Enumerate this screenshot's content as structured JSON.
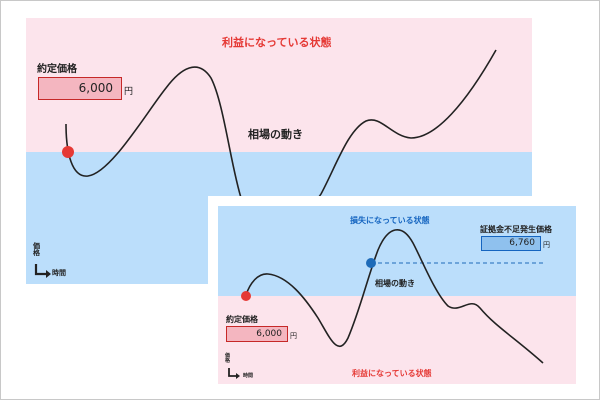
{
  "colors": {
    "profit_zone": "#fce4ec",
    "loss_zone": "#bbdefb",
    "profit_text": "#e53935",
    "loss_text": "#1565c0",
    "curve": "#222222",
    "entry_dot": "#e53935",
    "margin_dot": "#1e6bb8",
    "contract_box_fill": "#f4b6c0",
    "contract_box_border": "#c62828",
    "margin_box_fill": "#8fc1ee",
    "margin_box_border": "#1565c0"
  },
  "panel_profit": {
    "zone_top_label": "利益になっている状態",
    "contract_price_label": "約定価格",
    "contract_price_value": "6,000",
    "unit": "円",
    "market_label": "相場の動き",
    "axis_price": "価格",
    "axis_time": "時間"
  },
  "panel_loss": {
    "zone_top_label": "損失になっている状態",
    "margin_call_label": "証拠金不足発生価格",
    "margin_call_value": "6,760",
    "margin_unit": "円",
    "market_label": "相場の動き",
    "contract_price_label": "約定価格",
    "contract_price_value": "6,000",
    "unit": "円",
    "axis_price": "価格",
    "axis_time": "時間",
    "zone_bottom_label": "利益になっている状態"
  }
}
